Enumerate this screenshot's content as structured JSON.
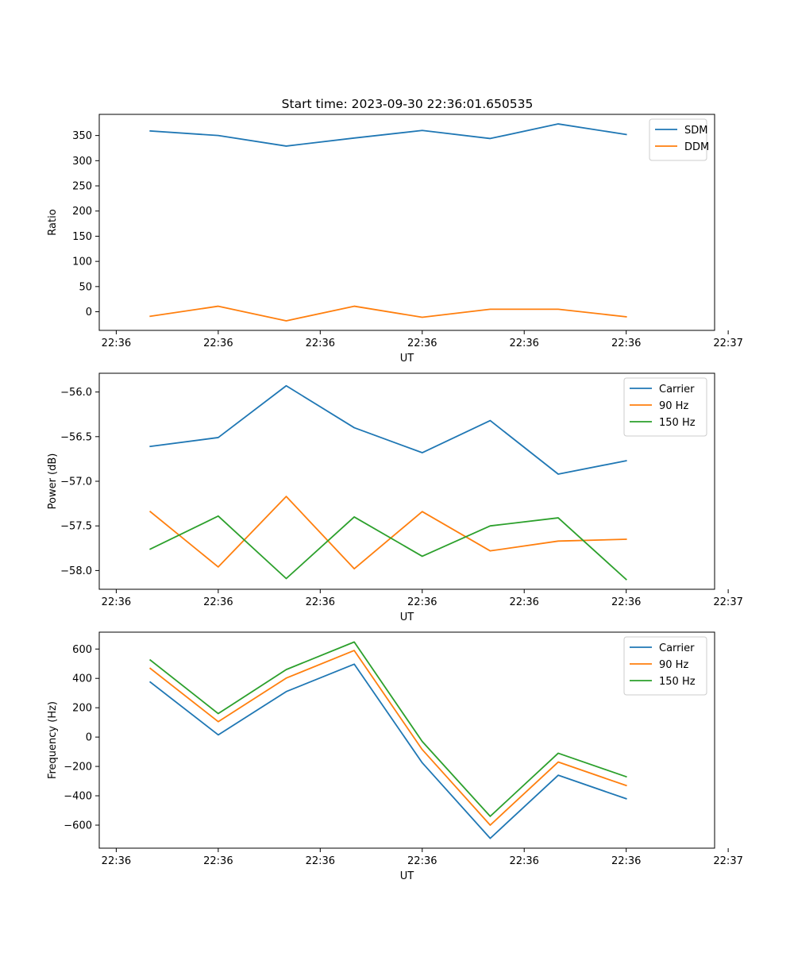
{
  "title": "Start time: 2023-09-30 22:36:01.650535",
  "chart_data": [
    {
      "type": "line",
      "title": "Start time: 2023-09-30 22:36:01.650535",
      "xlabel": "UT",
      "ylabel": "Ratio",
      "xlim": [
        -0.75,
        8.3
      ],
      "ylim": [
        -37,
        392
      ],
      "xticks": [
        -0.5,
        1.0,
        2.5,
        4.0,
        5.5,
        7.0,
        8.5
      ],
      "xtick_labels": [
        "22:36",
        "22:36",
        "22:36",
        "22:36",
        "22:36",
        "22:36",
        "22:37"
      ],
      "yticks": [
        0,
        50,
        100,
        150,
        200,
        250,
        300,
        350
      ],
      "ytick_labels": [
        "0",
        "50",
        "100",
        "150",
        "200",
        "250",
        "300",
        "350"
      ],
      "legend": "upper right",
      "x": [
        0,
        1,
        2,
        3,
        4,
        5,
        6,
        7
      ],
      "series": [
        {
          "name": "SDM",
          "color": "#1f77b4",
          "values": [
            359,
            350,
            329,
            345,
            360,
            344,
            373,
            352
          ]
        },
        {
          "name": "DDM",
          "color": "#ff7f0e",
          "values": [
            -9,
            11,
            -18,
            11,
            -11,
            5,
            5,
            -10
          ]
        }
      ]
    },
    {
      "type": "line",
      "title": "",
      "xlabel": "UT",
      "ylabel": "Power (dB)",
      "xlim": [
        -0.75,
        8.3
      ],
      "ylim": [
        -58.21,
        -55.79
      ],
      "xticks": [
        -0.5,
        1.0,
        2.5,
        4.0,
        5.5,
        7.0,
        8.5
      ],
      "xtick_labels": [
        "22:36",
        "22:36",
        "22:36",
        "22:36",
        "22:36",
        "22:36",
        "22:37"
      ],
      "yticks": [
        -58.0,
        -57.5,
        -57.0,
        -56.5,
        -56.0
      ],
      "ytick_labels": [
        "−58.0",
        "−57.5",
        "−57.0",
        "−56.5",
        "−56.0"
      ],
      "legend": "upper right",
      "x": [
        0,
        1,
        2,
        3,
        4,
        5,
        6,
        7
      ],
      "series": [
        {
          "name": "Carrier",
          "color": "#1f77b4",
          "values": [
            -56.61,
            -56.51,
            -55.93,
            -56.4,
            -56.68,
            -56.32,
            -56.92,
            -56.77
          ]
        },
        {
          "name": "90 Hz",
          "color": "#ff7f0e",
          "values": [
            -57.34,
            -57.96,
            -57.17,
            -57.98,
            -57.34,
            -57.78,
            -57.67,
            -57.65
          ]
        },
        {
          "name": "150 Hz",
          "color": "#2ca02c",
          "values": [
            -57.76,
            -57.39,
            -58.09,
            -57.4,
            -57.84,
            -57.5,
            -57.41,
            -58.1
          ]
        }
      ]
    },
    {
      "type": "line",
      "title": "",
      "xlabel": "UT",
      "ylabel": "Frequency (Hz)",
      "xlim": [
        -0.75,
        8.3
      ],
      "ylim": [
        -757,
        715
      ],
      "xticks": [
        -0.5,
        1.0,
        2.5,
        4.0,
        5.5,
        7.0,
        8.5
      ],
      "xtick_labels": [
        "22:36",
        "22:36",
        "22:36",
        "22:36",
        "22:36",
        "22:36",
        "22:37"
      ],
      "yticks": [
        -600,
        -400,
        -200,
        0,
        200,
        400,
        600
      ],
      "ytick_labels": [
        "−600",
        "−400",
        "−200",
        "0",
        "200",
        "400",
        "600"
      ],
      "legend": "upper right",
      "x": [
        0,
        1,
        2,
        3,
        4,
        5,
        6,
        7
      ],
      "series": [
        {
          "name": "Carrier",
          "color": "#1f77b4",
          "values": [
            375,
            15,
            310,
            497,
            -175,
            -690,
            -260,
            -420
          ]
        },
        {
          "name": "90 Hz",
          "color": "#ff7f0e",
          "values": [
            468,
            105,
            402,
            590,
            -85,
            -600,
            -170,
            -330
          ]
        },
        {
          "name": "150 Hz",
          "color": "#2ca02c",
          "values": [
            525,
            160,
            460,
            648,
            -30,
            -540,
            -110,
            -270
          ]
        }
      ]
    }
  ]
}
